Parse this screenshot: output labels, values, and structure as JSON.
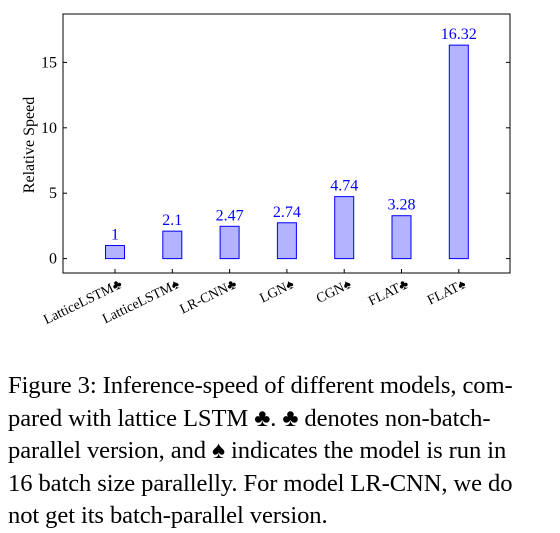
{
  "chart_data": {
    "type": "bar",
    "categories": [
      "LatticeLSTM♣",
      "LatticeLSTM♠",
      "LR-CNN♣",
      "LGN♠",
      "CGN♠",
      "FLAT♣",
      "FLAT♠"
    ],
    "values": [
      1,
      2.1,
      2.47,
      2.74,
      4.74,
      3.28,
      16.32
    ],
    "value_labels": [
      "1",
      "2.1",
      "2.47",
      "2.74",
      "4.74",
      "3.28",
      "16.32"
    ],
    "ylabel": "Relative Speed",
    "xlabel": "",
    "ylim": [
      -1.1,
      18.7
    ],
    "yticks": [
      0,
      5,
      10,
      15
    ],
    "grid": false,
    "bar_fill": "#b3b3ff",
    "bar_stroke": "#0000ff",
    "label_color": "#0000ff"
  },
  "caption": {
    "lines": [
      "Figure 3: Inference-speed of different models, com-",
      "pared with lattice LSTM ♣.  ♣ denotes non-batch-",
      "parallel version, and ♠ indicates the model is run in",
      "16 batch size parallelly.  For model LR-CNN, we do",
      "not get its batch-parallel version."
    ]
  }
}
